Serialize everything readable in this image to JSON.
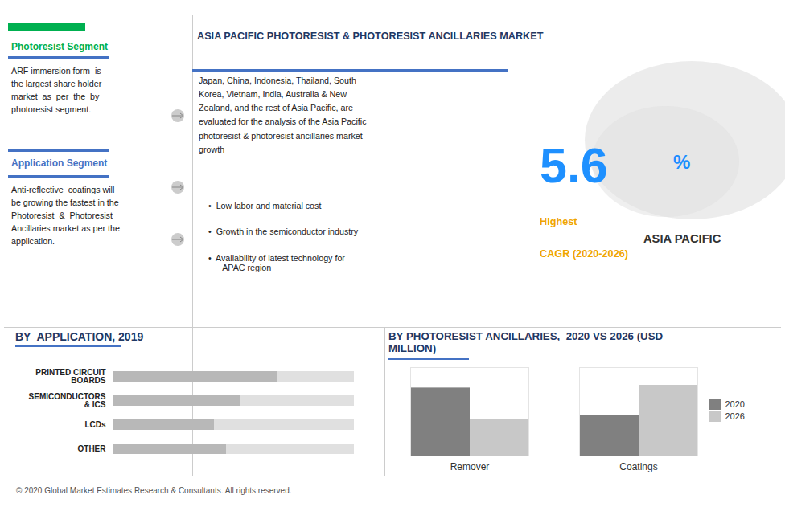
{
  "chart_data": [
    {
      "type": "text",
      "title": "ASIA PACIFIC PHOTORESIST & PHOTORESIST ANCILLARIES MARKET",
      "annotations": [
        "Photoresist Segment",
        "ARF immersion form  is\nthe largest share holder\nmarket  as  per  the  by\nphotoresist segment.",
        "Application Segment",
        "Anti-reflective  coatings will\nbe growing the fastest in the\nPhotoresist  &  Photoresist\nAncillaries market as per the\napplication.",
        "Japan, China, Indonesia, Thailand, South\nKorea, Vietnam, India, Australia & New\nZealand, and the rest of Asia Pacific, are\nevaluated for the analysis of the Asia Pacific\nphotoresist & photoresist ancillaries market\ngrowth",
        "•  Low labor and material cost",
        "•  Growth in the semiconductor industry",
        "•  Availability of latest technology for\n      APAC region",
        "5.6",
        "%",
        "Highest",
        "CAGR (2020-2026)",
        "ASIA PACIFIC",
        "© 2020 Global Market Estimates Research & Consultants. All rights reserved."
      ]
    },
    {
      "type": "bar",
      "title": "BY  APPLICATION, 2019",
      "orientation": "horizontal",
      "categories": [
        "PRINTED CIRCUIT\nBOARDS",
        "SEMICONDUCTORS\n& ICS",
        "LCDs",
        "OTHER"
      ],
      "values": [
        68,
        53,
        42,
        47
      ],
      "color": "#b8b8b8",
      "xlim": [
        0,
        100
      ],
      "grid": false,
      "tick_labels": "y"
    },
    {
      "type": "bar",
      "title": "BY PHOTORESIST ANCILLARIES,  2020 VS 2026 (USD\nMILLION)",
      "categories": [
        "Remover",
        "Coatings"
      ],
      "series": [
        {
          "name": "2020",
          "color": "#808080",
          "values": [
            75,
            45
          ]
        },
        {
          "name": "2026",
          "color": "#c8c8c8",
          "values": [
            40,
            78
          ]
        }
      ],
      "ylim": [
        0,
        97.5
      ],
      "grid": false,
      "tick_labels": "x",
      "legend": "right"
    }
  ]
}
